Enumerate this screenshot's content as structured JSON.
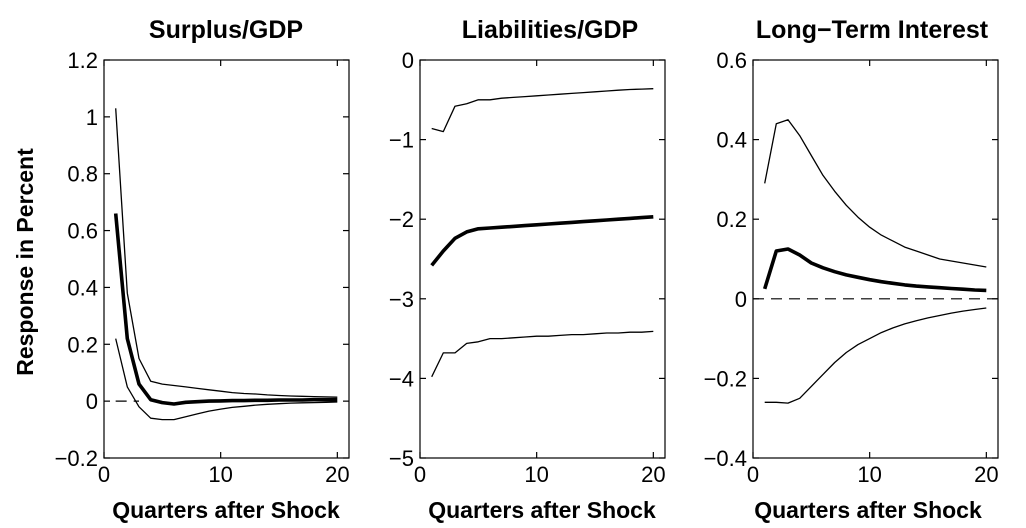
{
  "chart_data": [
    {
      "type": "line",
      "title": "Surplus/GDP",
      "xlabel": "Quarters after Shock",
      "ylabel": "Response in Percent",
      "xlim": [
        0,
        21
      ],
      "ylim": [
        -0.2,
        1.2
      ],
      "xticks": [
        0,
        10,
        20
      ],
      "yticks": [
        -0.2,
        0,
        0.2,
        0.4,
        0.6,
        0.8,
        1,
        1.2
      ],
      "ytick_labels": [
        "−0.2",
        "0",
        "0.2",
        "0.4",
        "0.6",
        "0.8",
        "1",
        "1.2"
      ],
      "xtick_labels": [
        "0",
        "10",
        "20"
      ],
      "zero_line": true,
      "zero_line_range": [
        1,
        3
      ],
      "x": [
        1,
        2,
        3,
        4,
        5,
        6,
        7,
        8,
        9,
        10,
        11,
        12,
        13,
        14,
        15,
        16,
        17,
        18,
        19,
        20
      ],
      "series": [
        {
          "role": "upper",
          "width": 1.3,
          "values": [
            1.03,
            0.38,
            0.15,
            0.07,
            0.06,
            0.055,
            0.05,
            0.045,
            0.04,
            0.035,
            0.03,
            0.027,
            0.025,
            0.022,
            0.02,
            0.018,
            0.017,
            0.016,
            0.015,
            0.014
          ]
        },
        {
          "role": "median",
          "width": 3.6,
          "values": [
            0.66,
            0.22,
            0.06,
            0.005,
            -0.005,
            -0.01,
            -0.004,
            -0.002,
            0.0,
            0.001,
            0.002,
            0.002,
            0.003,
            0.003,
            0.004,
            0.004,
            0.004,
            0.005,
            0.005,
            0.005
          ]
        },
        {
          "role": "lower",
          "width": 1.3,
          "values": [
            0.22,
            0.05,
            -0.02,
            -0.06,
            -0.065,
            -0.065,
            -0.055,
            -0.045,
            -0.035,
            -0.028,
            -0.022,
            -0.018,
            -0.014,
            -0.011,
            -0.009,
            -0.007,
            -0.006,
            -0.005,
            -0.004,
            -0.003
          ]
        }
      ]
    },
    {
      "type": "line",
      "title": "Liabilities/GDP",
      "xlabel": "Quarters after Shock",
      "xlim": [
        0,
        21
      ],
      "ylim": [
        -5,
        0
      ],
      "xticks": [
        0,
        10,
        20
      ],
      "yticks": [
        -5,
        -4,
        -3,
        -2,
        -1,
        0
      ],
      "ytick_labels": [
        "−5",
        "−4",
        "−3",
        "−2",
        "−1",
        "0"
      ],
      "xtick_labels": [
        "0",
        "10",
        "20"
      ],
      "zero_line": false,
      "x": [
        1,
        2,
        3,
        4,
        5,
        6,
        7,
        8,
        9,
        10,
        11,
        12,
        13,
        14,
        15,
        16,
        17,
        18,
        19,
        20
      ],
      "series": [
        {
          "role": "upper",
          "width": 1.3,
          "values": [
            -0.86,
            -0.9,
            -0.58,
            -0.55,
            -0.5,
            -0.5,
            -0.48,
            -0.47,
            -0.46,
            -0.45,
            -0.44,
            -0.43,
            -0.42,
            -0.41,
            -0.4,
            -0.39,
            -0.38,
            -0.37,
            -0.365,
            -0.36
          ]
        },
        {
          "role": "median",
          "width": 3.6,
          "values": [
            -2.58,
            -2.4,
            -2.24,
            -2.16,
            -2.12,
            -2.11,
            -2.1,
            -2.09,
            -2.08,
            -2.07,
            -2.06,
            -2.05,
            -2.04,
            -2.03,
            -2.02,
            -2.01,
            -2.0,
            -1.99,
            -1.98,
            -1.97
          ]
        },
        {
          "role": "lower",
          "width": 1.3,
          "values": [
            -3.98,
            -3.68,
            -3.68,
            -3.56,
            -3.54,
            -3.5,
            -3.5,
            -3.49,
            -3.48,
            -3.47,
            -3.47,
            -3.46,
            -3.45,
            -3.45,
            -3.44,
            -3.43,
            -3.43,
            -3.42,
            -3.42,
            -3.41
          ]
        }
      ]
    },
    {
      "type": "line",
      "title": "Long−Term Interest",
      "xlabel": "Quarters after Shock",
      "xlim": [
        0,
        21
      ],
      "ylim": [
        -0.4,
        0.6
      ],
      "xticks": [
        0,
        10,
        20
      ],
      "yticks": [
        -0.4,
        -0.2,
        0,
        0.2,
        0.4,
        0.6
      ],
      "ytick_labels": [
        "−0.4",
        "−0.2",
        "0",
        "0.2",
        "0.4",
        "0.6"
      ],
      "xtick_labels": [
        "0",
        "10",
        "20"
      ],
      "zero_line": true,
      "zero_line_range": [
        0,
        21
      ],
      "x": [
        1,
        2,
        3,
        4,
        5,
        6,
        7,
        8,
        9,
        10,
        11,
        12,
        13,
        14,
        15,
        16,
        17,
        18,
        19,
        20
      ],
      "series": [
        {
          "role": "upper",
          "width": 1.3,
          "values": [
            0.29,
            0.44,
            0.45,
            0.41,
            0.36,
            0.31,
            0.27,
            0.235,
            0.205,
            0.18,
            0.16,
            0.145,
            0.13,
            0.12,
            0.11,
            0.1,
            0.095,
            0.09,
            0.085,
            0.08
          ]
        },
        {
          "role": "median",
          "width": 3.6,
          "values": [
            0.025,
            0.12,
            0.125,
            0.11,
            0.09,
            0.078,
            0.068,
            0.06,
            0.054,
            0.048,
            0.043,
            0.039,
            0.035,
            0.032,
            0.03,
            0.028,
            0.026,
            0.024,
            0.022,
            0.021
          ]
        },
        {
          "role": "lower",
          "width": 1.3,
          "values": [
            -0.26,
            -0.26,
            -0.262,
            -0.25,
            -0.22,
            -0.19,
            -0.16,
            -0.135,
            -0.115,
            -0.1,
            -0.085,
            -0.073,
            -0.063,
            -0.055,
            -0.048,
            -0.042,
            -0.036,
            -0.031,
            -0.027,
            -0.023
          ]
        }
      ]
    }
  ]
}
